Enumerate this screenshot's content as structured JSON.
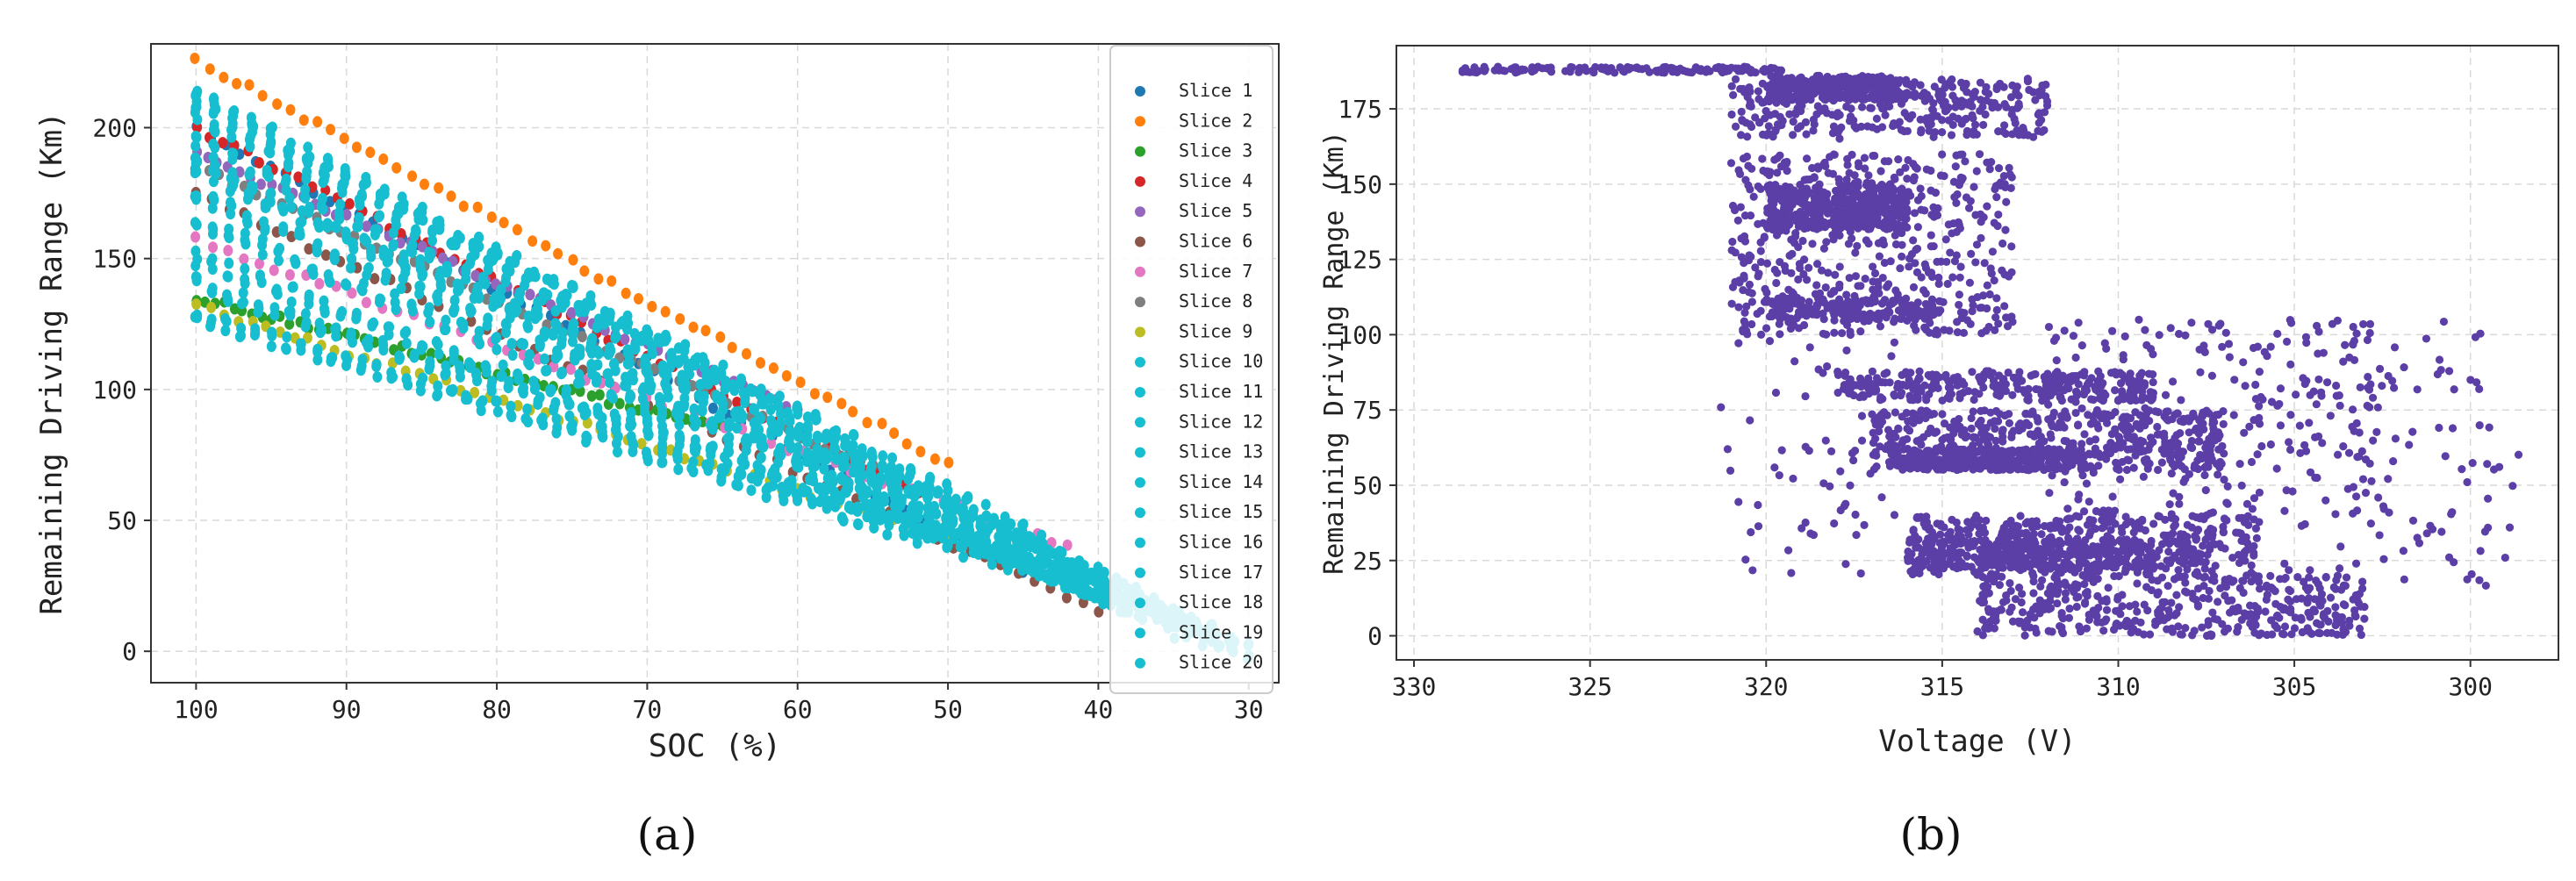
{
  "chart_data": [
    {
      "id": "a",
      "type": "scatter",
      "panel_label": "(a)",
      "xlabel": "SOC (%)",
      "ylabel": "Remaining Driving Range (Km)",
      "xlim": [
        103,
        28
      ],
      "ylim": [
        -12,
        232
      ],
      "x_reversed": true,
      "xticks": [
        100,
        90,
        80,
        70,
        60,
        50,
        40,
        30
      ],
      "yticks": [
        0,
        50,
        100,
        150,
        200
      ],
      "grid": true,
      "legend_position": "top-right",
      "series": [
        {
          "name": "Slice 1",
          "color": "#1f77b4",
          "x_start": 100,
          "x_end": 45,
          "y_start": 200,
          "y_end": 30
        },
        {
          "name": "Slice 2",
          "color": "#ff7f0e",
          "x_start": 100,
          "x_end": 50,
          "y_start": 226,
          "y_end": 72
        },
        {
          "name": "Slice 3",
          "color": "#2ca02c",
          "x_start": 100,
          "x_end": 65,
          "y_start": 135,
          "y_end": 85
        },
        {
          "name": "Slice 4",
          "color": "#d62728",
          "x_start": 100,
          "x_end": 52,
          "y_start": 200,
          "y_end": 60
        },
        {
          "name": "Slice 5",
          "color": "#9467bd",
          "x_start": 100,
          "x_end": 60,
          "y_start": 190,
          "y_end": 92
        },
        {
          "name": "Slice 6",
          "color": "#8c564b",
          "x_start": 100,
          "x_end": 40,
          "y_start": 175,
          "y_end": 15
        },
        {
          "name": "Slice 7",
          "color": "#e377c2",
          "x_start": 100,
          "x_end": 42,
          "y_start": 157,
          "y_end": 40
        },
        {
          "name": "Slice 8",
          "color": "#7f7f7f",
          "x_start": 100,
          "x_end": 55,
          "y_start": 185,
          "y_end": 70
        },
        {
          "name": "Slice 9",
          "color": "#bcbd22",
          "x_start": 100,
          "x_end": 48,
          "y_start": 132,
          "y_end": 40
        },
        {
          "name": "Slice 10",
          "color": "#17becf",
          "x_start": 100,
          "x_end": 44,
          "y_start": 128,
          "y_end": 30
        },
        {
          "name": "Slice 11",
          "color": "#17becf",
          "x_start": 100,
          "x_end": 42,
          "y_start": 140,
          "y_end": 28
        },
        {
          "name": "Slice 12",
          "color": "#17becf",
          "x_start": 100,
          "x_end": 40,
          "y_start": 150,
          "y_end": 22
        },
        {
          "name": "Slice 13",
          "color": "#17becf",
          "x_start": 100,
          "x_end": 38,
          "y_start": 165,
          "y_end": 18
        },
        {
          "name": "Slice 14",
          "color": "#17becf",
          "x_start": 100,
          "x_end": 36,
          "y_start": 175,
          "y_end": 12
        },
        {
          "name": "Slice 15",
          "color": "#17becf",
          "x_start": 100,
          "x_end": 35,
          "y_start": 185,
          "y_end": 8
        },
        {
          "name": "Slice 16",
          "color": "#17becf",
          "x_start": 100,
          "x_end": 33,
          "y_start": 195,
          "y_end": 5
        },
        {
          "name": "Slice 17",
          "color": "#17becf",
          "x_start": 100,
          "x_end": 32,
          "y_start": 205,
          "y_end": 3
        },
        {
          "name": "Slice 18",
          "color": "#17becf",
          "x_start": 100,
          "x_end": 31,
          "y_start": 210,
          "y_end": 1
        },
        {
          "name": "Slice 19",
          "color": "#17becf",
          "x_start": 100,
          "x_end": 30,
          "y_start": 213,
          "y_end": 0
        },
        {
          "name": "Slice 20",
          "color": "#17becf",
          "x_start": 100,
          "x_end": 30,
          "y_start": 187,
          "y_end": 0
        }
      ]
    },
    {
      "id": "b",
      "type": "scatter",
      "panel_label": "(b)",
      "xlabel": "Voltage (V)",
      "ylabel": "Remaining Driving Range (Km)",
      "xlim": [
        330.5,
        297.5
      ],
      "ylim": [
        -8,
        196
      ],
      "x_reversed": true,
      "xticks": [
        330,
        325,
        320,
        315,
        310,
        305,
        300
      ],
      "yticks": [
        0,
        25,
        50,
        75,
        100,
        125,
        150,
        175
      ],
      "grid": true,
      "color": "#5b3ea6",
      "clusters": [
        {
          "v": [
            328.8,
            319.5
          ],
          "r": [
            187,
            189
          ],
          "n": 140
        },
        {
          "v": [
            320,
            316
          ],
          "r": [
            178,
            186
          ],
          "n": 260
        },
        {
          "v": [
            321,
            312
          ],
          "r": [
            165,
            185
          ],
          "n": 320
        },
        {
          "v": [
            320,
            316
          ],
          "r": [
            135,
            150
          ],
          "n": 380
        },
        {
          "v": [
            321,
            313
          ],
          "r": [
            100,
            160
          ],
          "n": 520
        },
        {
          "v": [
            320,
            315
          ],
          "r": [
            105,
            112
          ],
          "n": 160
        },
        {
          "v": [
            318,
            309
          ],
          "r": [
            78,
            88
          ],
          "n": 300
        },
        {
          "v": [
            317,
            307
          ],
          "r": [
            55,
            75
          ],
          "n": 520
        },
        {
          "v": [
            316,
            311
          ],
          "r": [
            55,
            62
          ],
          "n": 220
        },
        {
          "v": [
            316,
            306
          ],
          "r": [
            20,
            40
          ],
          "n": 480
        },
        {
          "v": [
            316,
            309
          ],
          "r": [
            22,
            32
          ],
          "n": 260
        },
        {
          "v": [
            314,
            303
          ],
          "r": [
            0,
            20
          ],
          "n": 420
        },
        {
          "v": [
            312,
            302
          ],
          "r": [
            40,
            105
          ],
          "n": 260
        },
        {
          "v": [
            306,
            298.5
          ],
          "r": [
            15,
            105
          ],
          "n": 90
        },
        {
          "v": [
            321.5,
            316
          ],
          "r": [
            20,
            110
          ],
          "n": 70
        }
      ]
    }
  ]
}
